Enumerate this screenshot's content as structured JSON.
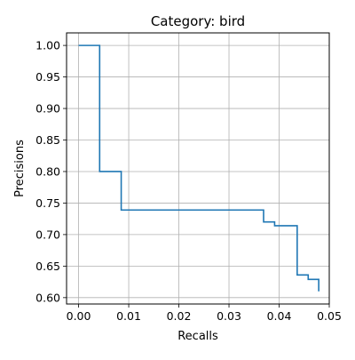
{
  "chart_data": {
    "type": "line",
    "title": "Category: bird",
    "xlabel": "Recalls",
    "ylabel": "Precisions",
    "xlim": [
      -0.0024,
      0.05
    ],
    "ylim": [
      0.5899,
      1.0199
    ],
    "xticks": [
      0.0,
      0.01,
      0.02,
      0.03,
      0.04,
      0.05
    ],
    "xtick_labels": [
      "0.00",
      "0.01",
      "0.02",
      "0.03",
      "0.04",
      "0.05"
    ],
    "yticks": [
      0.6,
      0.65,
      0.7,
      0.75,
      0.8,
      0.85,
      0.9,
      0.95,
      1.0
    ],
    "ytick_labels": [
      "0.60",
      "0.65",
      "0.70",
      "0.75",
      "0.80",
      "0.85",
      "0.90",
      "0.95",
      "1.00"
    ],
    "grid": true,
    "line_color": "#1f77b4",
    "series": [
      {
        "x": [
          0.0,
          0.0042,
          0.0042,
          0.0085,
          0.0085,
          0.0369,
          0.0369,
          0.0391,
          0.0391,
          0.0436,
          0.0436,
          0.0458,
          0.0458,
          0.0479,
          0.0479
        ],
        "y": [
          1.0,
          1.0,
          0.8,
          0.8,
          0.739,
          0.739,
          0.72,
          0.72,
          0.714,
          0.714,
          0.636,
          0.636,
          0.629,
          0.629,
          0.61
        ]
      }
    ]
  }
}
